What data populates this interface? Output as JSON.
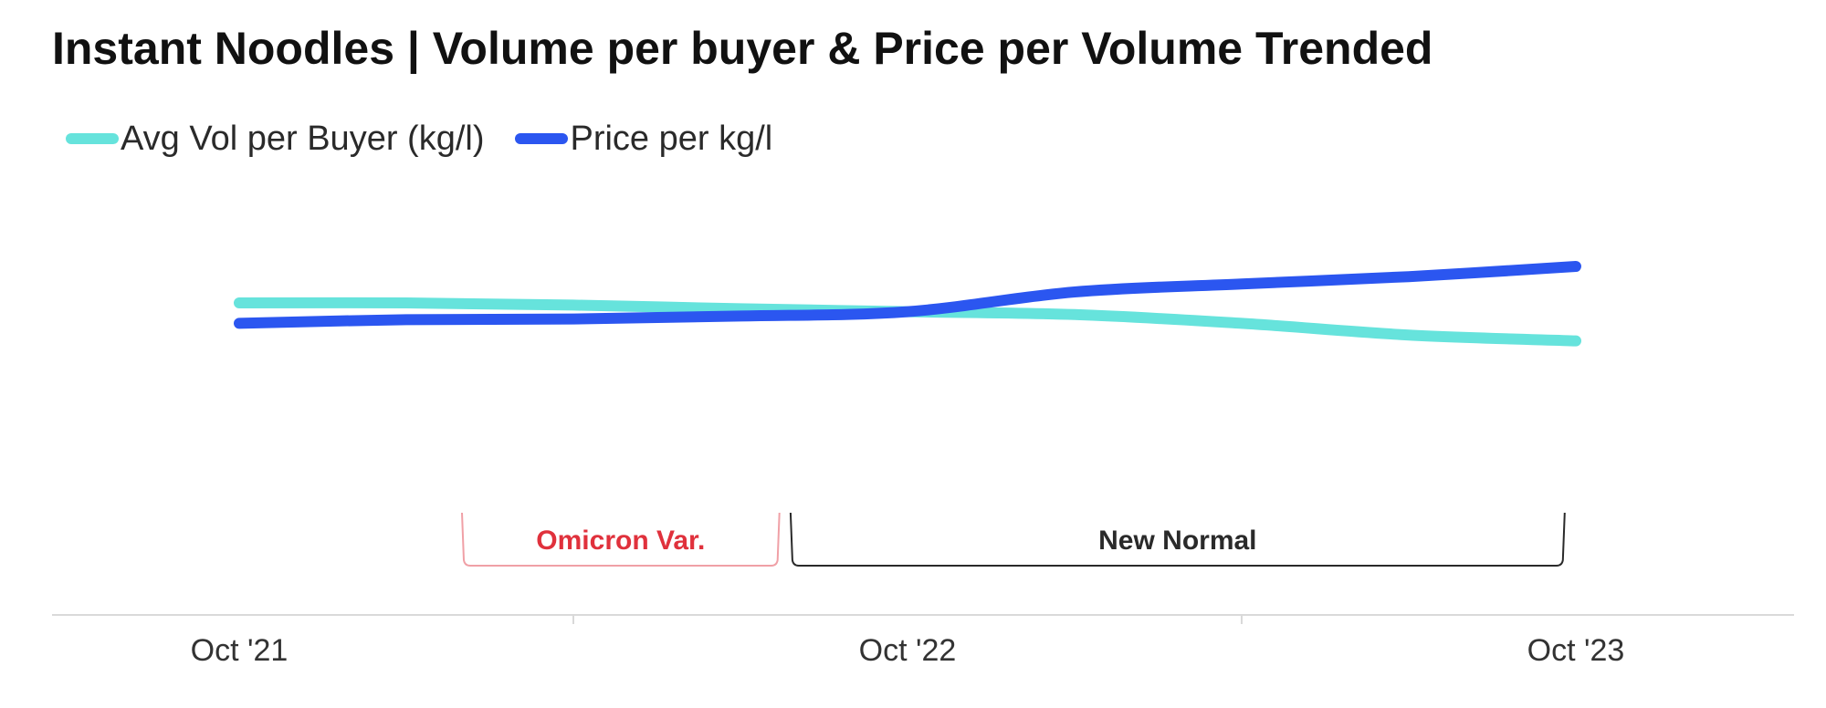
{
  "chart_data": {
    "type": "line",
    "title": "Instant Noodles | Volume per buyer & Price per Volume Trended",
    "xlabel": "",
    "ylabel": "",
    "grid": false,
    "legend_position": "top-left",
    "x_start": "Oct '21",
    "x_end": "Oct '23",
    "periods": 24,
    "x_tick_labels": [
      {
        "label": "Oct '21",
        "at": 0
      },
      {
        "label": "Oct '22",
        "at": 12
      },
      {
        "label": "Oct '23",
        "at": 24
      }
    ],
    "x_minor_ticks": [
      6,
      18
    ],
    "series": [
      {
        "name": "Avg Vol per Buyer (kg/l)",
        "color": "#66e3dc",
        "x": [
          0,
          3,
          6,
          9,
          12,
          15,
          18,
          21,
          24
        ],
        "values": [
          0.5,
          0.5,
          0.47,
          0.42,
          0.38,
          0.34,
          0.22,
          0.06,
          -0.02
        ]
      },
      {
        "name": "Price per kg/l",
        "color": "#2b56f0",
        "x": [
          0,
          3,
          6,
          9,
          12,
          15,
          18,
          21,
          24
        ],
        "values": [
          0.22,
          0.27,
          0.28,
          0.32,
          0.38,
          0.65,
          0.76,
          0.86,
          1.0
        ]
      }
    ],
    "annotations": [
      {
        "label": "Omicron Var.",
        "from": 4,
        "to": 9.7,
        "color": "#e0313c",
        "bracket_color": "#f0a0a6"
      },
      {
        "label": "New Normal",
        "from": 9.9,
        "to": 23.8,
        "color": "#2a2a2a",
        "bracket_color": "#2a2a2a"
      }
    ]
  }
}
